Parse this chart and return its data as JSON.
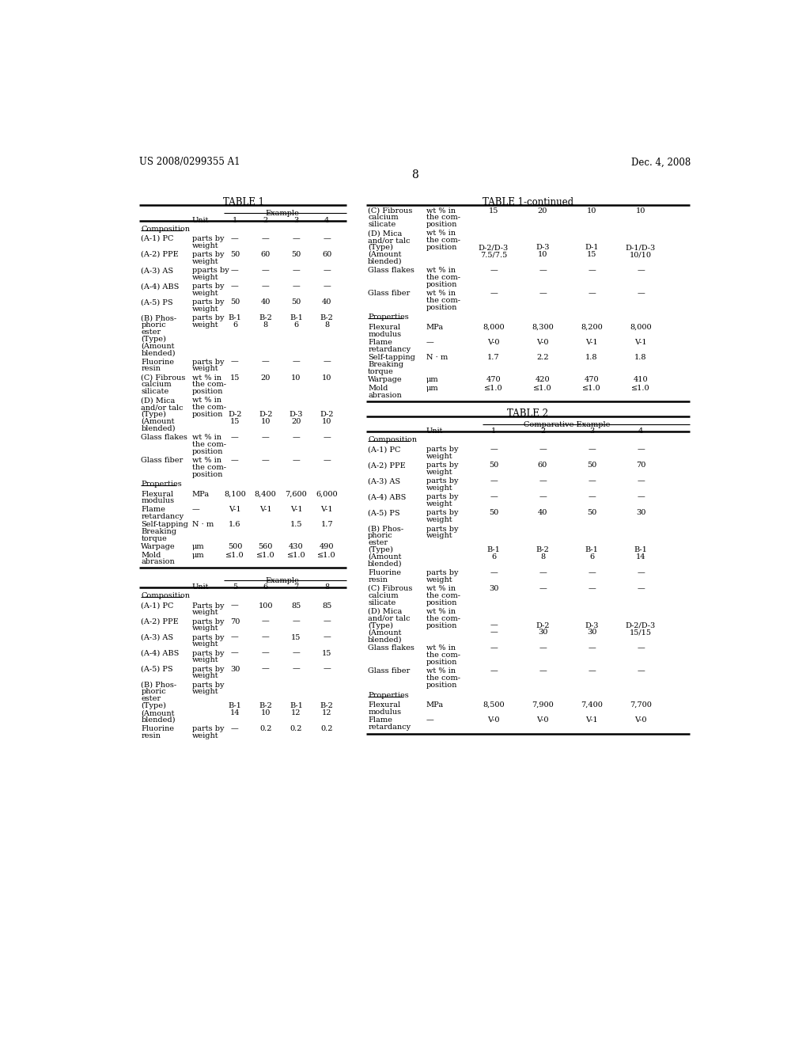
{
  "header_left": "US 2008/0299355 A1",
  "header_right": "Dec. 4, 2008",
  "page_number": "8",
  "background": "#ffffff",
  "text_color": "#000000"
}
